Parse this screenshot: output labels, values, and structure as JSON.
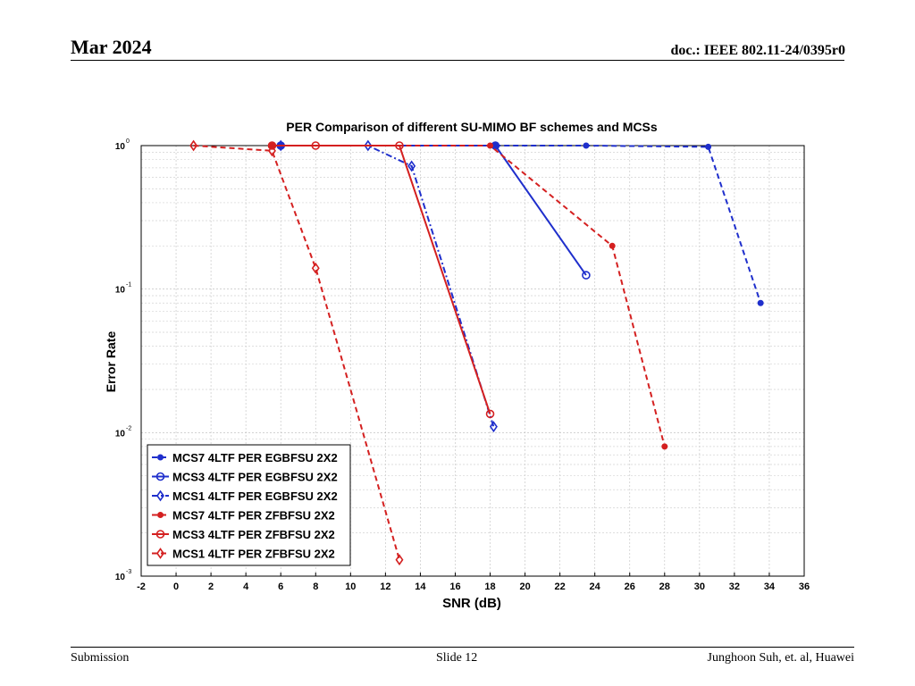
{
  "header": {
    "date": "Mar 2024",
    "doc": "doc.: IEEE 802.11-24/0395r0"
  },
  "footer": {
    "left": "Submission",
    "center": "Slide 12",
    "right": "Junghoon Suh, et. al, Huawei"
  },
  "chart_data": {
    "type": "line",
    "title": "PER Comparison of different SU-MIMO BF schemes and MCSs",
    "xlabel": "SNR (dB)",
    "ylabel": "Error Rate",
    "xlim": [
      -2,
      36
    ],
    "ylim": [
      0.001,
      1
    ],
    "yscale": "log",
    "xticks": [
      -2,
      0,
      2,
      4,
      6,
      8,
      10,
      12,
      14,
      16,
      18,
      20,
      22,
      24,
      26,
      28,
      30,
      32,
      34,
      36
    ],
    "yticks": [
      {
        "base": "10",
        "exp": "0",
        "value": 1
      },
      {
        "base": "10",
        "exp": "-1",
        "value": 0.1
      },
      {
        "base": "10",
        "exp": "-2",
        "value": 0.01
      },
      {
        "base": "10",
        "exp": "-3",
        "value": 0.001
      }
    ],
    "grid": true,
    "legend_position": "bottom-left",
    "series": [
      {
        "name": "MCS7 4LTF PER EGBFSU 2X2",
        "color": "#1f2fcc",
        "dash": "dashed",
        "marker": "dot",
        "x": [
          6,
          18.3,
          23.5,
          30.5,
          33.5
        ],
        "y": [
          1,
          1,
          1,
          0.98,
          0.08
        ]
      },
      {
        "name": "MCS3 4LTF PER EGBFSU 2X2",
        "color": "#1f2fcc",
        "dash": "solid",
        "marker": "circle",
        "x": [
          6,
          18.3,
          23.5
        ],
        "y": [
          1,
          1,
          0.125
        ]
      },
      {
        "name": "MCS1 4LTF PER EGBFSU 2X2",
        "color": "#1f2fcc",
        "dash": "dashdot",
        "marker": "diamond",
        "x": [
          6,
          11,
          13.5,
          18.2
        ],
        "y": [
          1,
          1,
          0.72,
          0.011
        ]
      },
      {
        "name": "MCS7 4LTF PER ZFBFSU 2X2",
        "color": "#d42020",
        "dash": "dashed",
        "marker": "dot",
        "x": [
          5.5,
          18,
          25,
          28
        ],
        "y": [
          1,
          1,
          0.2,
          0.008
        ]
      },
      {
        "name": "MCS3 4LTF PER ZFBFSU 2X2",
        "color": "#d42020",
        "dash": "solid",
        "marker": "circle",
        "x": [
          5.5,
          8,
          12.8,
          18
        ],
        "y": [
          1,
          1,
          1,
          0.0135
        ]
      },
      {
        "name": "MCS1 4LTF PER ZFBFSU 2X2",
        "color": "#d42020",
        "dash": "dashed",
        "marker": "diamond",
        "x": [
          1,
          5.5,
          8,
          12.8
        ],
        "y": [
          1,
          0.92,
          0.14,
          0.0013
        ]
      }
    ]
  }
}
